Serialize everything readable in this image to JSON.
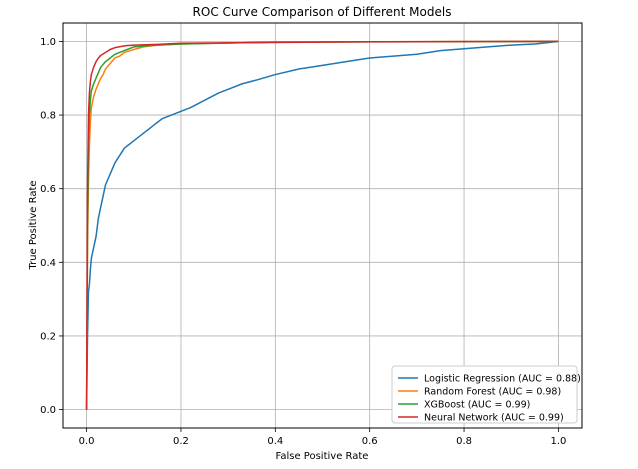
{
  "chart_data": {
    "type": "line",
    "title": "ROC Curve Comparison of Different Models",
    "xlabel": "False Positive Rate",
    "ylabel": "True Positive Rate",
    "xlim": [
      -0.05,
      1.05
    ],
    "ylim": [
      -0.05,
      1.05
    ],
    "xticks": [
      0.0,
      0.2,
      0.4,
      0.6,
      0.8,
      1.0
    ],
    "yticks": [
      0.0,
      0.2,
      0.4,
      0.6,
      0.8,
      1.0
    ],
    "xtick_labels": [
      "0.0",
      "0.2",
      "0.4",
      "0.6",
      "0.8",
      "1.0"
    ],
    "ytick_labels": [
      "0.0",
      "0.2",
      "0.4",
      "0.6",
      "0.8",
      "1.0"
    ],
    "grid": true,
    "legend_position": "lower-right",
    "series": [
      {
        "name": "Logistic Regression (AUC = 0.88)",
        "color": "#1f77b4",
        "x": [
          0,
          0.002,
          0.004,
          0.006,
          0.008,
          0.01,
          0.015,
          0.02,
          0.025,
          0.03,
          0.035,
          0.04,
          0.05,
          0.06,
          0.07,
          0.08,
          0.09,
          0.1,
          0.12,
          0.14,
          0.16,
          0.18,
          0.2,
          0.22,
          0.25,
          0.28,
          0.3,
          0.33,
          0.36,
          0.4,
          0.45,
          0.5,
          0.55,
          0.6,
          0.65,
          0.7,
          0.75,
          0.8,
          0.85,
          0.9,
          0.95,
          0.98,
          1.0
        ],
        "y": [
          0,
          0.2,
          0.32,
          0.34,
          0.38,
          0.41,
          0.44,
          0.47,
          0.52,
          0.55,
          0.58,
          0.61,
          0.64,
          0.67,
          0.69,
          0.71,
          0.72,
          0.73,
          0.75,
          0.77,
          0.79,
          0.8,
          0.81,
          0.82,
          0.84,
          0.86,
          0.87,
          0.885,
          0.895,
          0.91,
          0.925,
          0.935,
          0.945,
          0.955,
          0.96,
          0.965,
          0.975,
          0.98,
          0.985,
          0.99,
          0.993,
          0.997,
          1.0
        ]
      },
      {
        "name": "Random Forest (AUC = 0.98)",
        "color": "#ff7f0e",
        "x": [
          0,
          0.002,
          0.004,
          0.006,
          0.008,
          0.01,
          0.015,
          0.02,
          0.025,
          0.03,
          0.035,
          0.04,
          0.05,
          0.06,
          0.07,
          0.08,
          0.1,
          0.12,
          0.15,
          0.2,
          0.3,
          0.4,
          0.6,
          1.0
        ],
        "y": [
          0,
          0.45,
          0.62,
          0.72,
          0.78,
          0.82,
          0.85,
          0.87,
          0.885,
          0.9,
          0.91,
          0.925,
          0.94,
          0.955,
          0.96,
          0.97,
          0.978,
          0.985,
          0.99,
          0.993,
          0.996,
          0.998,
          0.999,
          1.0
        ]
      },
      {
        "name": "XGBoost (AUC = 0.99)",
        "color": "#2ca02c",
        "x": [
          0,
          0.002,
          0.004,
          0.006,
          0.008,
          0.01,
          0.015,
          0.02,
          0.025,
          0.03,
          0.04,
          0.05,
          0.06,
          0.08,
          0.1,
          0.15,
          0.2,
          0.4,
          1.0
        ],
        "y": [
          0,
          0.5,
          0.7,
          0.8,
          0.84,
          0.865,
          0.885,
          0.9,
          0.915,
          0.93,
          0.945,
          0.955,
          0.965,
          0.975,
          0.985,
          0.99,
          0.993,
          0.998,
          1.0
        ]
      },
      {
        "name": "Neural Network (AUC = 0.99)",
        "color": "#d62728",
        "x": [
          0,
          0.002,
          0.004,
          0.006,
          0.008,
          0.01,
          0.015,
          0.02,
          0.025,
          0.03,
          0.04,
          0.05,
          0.06,
          0.08,
          0.1,
          0.15,
          0.2,
          0.6,
          1.0
        ],
        "y": [
          0,
          0.6,
          0.8,
          0.86,
          0.89,
          0.91,
          0.93,
          0.945,
          0.955,
          0.962,
          0.97,
          0.978,
          0.983,
          0.988,
          0.99,
          0.992,
          0.995,
          0.999,
          1.0
        ]
      }
    ]
  }
}
